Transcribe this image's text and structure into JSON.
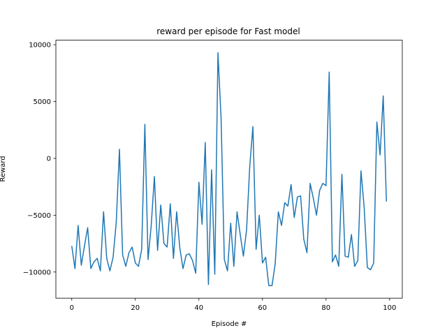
{
  "chart_data": {
    "type": "line",
    "title": "reward per episode for Fast model",
    "xlabel": "Episode #",
    "ylabel": "Reward",
    "xlim": [
      -5,
      104
    ],
    "ylim": [
      -12300,
      10400
    ],
    "xticks": [
      0,
      20,
      40,
      60,
      80,
      100
    ],
    "yticks": [
      -10000,
      -5000,
      0,
      5000,
      10000
    ],
    "grid": false,
    "line_color": "#1f77b4",
    "series": [
      {
        "values": [
          -7700,
          -9700,
          -5900,
          -9400,
          -7700,
          -6100,
          -9700,
          -9100,
          -8800,
          -9900,
          -4700,
          -8800,
          -9900,
          -8700,
          -5600,
          800,
          -8500,
          -9500,
          -8300,
          -7800,
          -9200,
          -9500,
          -8000,
          3000,
          -8900,
          -5900,
          -1600,
          -8100,
          -4100,
          -7500,
          -7800,
          -4000,
          -8800,
          -4700,
          -7900,
          -9700,
          -8500,
          -8400,
          -9000,
          -10100,
          -2100,
          -5800,
          1400,
          -11100,
          -1000,
          -10200,
          9300,
          3400,
          -8900,
          -9900,
          -5700,
          -9500,
          -4700,
          -6700,
          -8600,
          -6300,
          -700,
          2800,
          -8000,
          -5000,
          -9200,
          -8700,
          -11200,
          -11200,
          -9300,
          -4700,
          -5900,
          -3900,
          -4200,
          -2300,
          -5200,
          -3400,
          -3300,
          -7100,
          -8300,
          -2200,
          -3500,
          -5000,
          -2800,
          -2200,
          -2400,
          7600,
          -9100,
          -8500,
          -9500,
          -1400,
          -8600,
          -8700,
          -6700,
          -9500,
          -9000,
          -1100,
          -4300,
          -9600,
          -9800,
          -9200,
          3200,
          300,
          5500,
          -3800
        ]
      }
    ],
    "x": [
      0,
      1,
      2,
      3,
      4,
      5,
      6,
      7,
      8,
      9,
      10,
      11,
      12,
      13,
      14,
      15,
      16,
      17,
      18,
      19,
      20,
      21,
      22,
      23,
      24,
      25,
      26,
      27,
      28,
      29,
      30,
      31,
      32,
      33,
      34,
      35,
      36,
      37,
      38,
      39,
      40,
      41,
      42,
      43,
      44,
      45,
      46,
      47,
      48,
      49,
      50,
      51,
      52,
      53,
      54,
      55,
      56,
      57,
      58,
      59,
      60,
      61,
      62,
      63,
      64,
      65,
      66,
      67,
      68,
      69,
      70,
      71,
      72,
      73,
      74,
      75,
      76,
      77,
      78,
      79,
      80,
      81,
      82,
      83,
      84,
      85,
      86,
      87,
      88,
      89,
      90,
      91,
      92,
      93,
      94,
      95,
      96,
      97,
      98,
      99
    ]
  }
}
